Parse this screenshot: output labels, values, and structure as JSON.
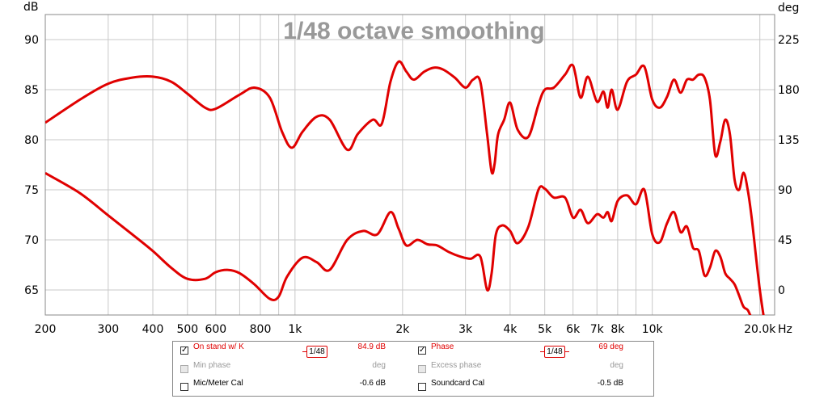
{
  "chart_data": {
    "type": "line",
    "title": "1/48 octave smoothing",
    "left_unit": "dB",
    "right_unit": "deg",
    "x_unit": "Hz",
    "x_scale": "log",
    "xlim": [
      200,
      22000
    ],
    "ylim_left": [
      62.5,
      92.5
    ],
    "ylim_right": [
      -22.5,
      247.5
    ],
    "x_ticks": [
      {
        "value": 200,
        "label": "200"
      },
      {
        "value": 300,
        "label": "300"
      },
      {
        "value": 400,
        "label": "400"
      },
      {
        "value": 500,
        "label": "500"
      },
      {
        "value": 600,
        "label": "600"
      },
      {
        "value": 800,
        "label": "800"
      },
      {
        "value": 1000,
        "label": "1k"
      },
      {
        "value": 2000,
        "label": "2k"
      },
      {
        "value": 3000,
        "label": "3k"
      },
      {
        "value": 4000,
        "label": "4k"
      },
      {
        "value": 5000,
        "label": "5k"
      },
      {
        "value": 6000,
        "label": "6k"
      },
      {
        "value": 7000,
        "label": "7k"
      },
      {
        "value": 8000,
        "label": "8k"
      },
      {
        "value": 10000,
        "label": "10k"
      },
      {
        "value": 20000,
        "label": "20.0k"
      }
    ],
    "y_left_ticks": [
      {
        "value": 65,
        "label": "65"
      },
      {
        "value": 70,
        "label": "70"
      },
      {
        "value": 75,
        "label": "75"
      },
      {
        "value": 80,
        "label": "80"
      },
      {
        "value": 85,
        "label": "85"
      },
      {
        "value": 90,
        "label": "90"
      }
    ],
    "y_right_ticks": [
      {
        "value": 0,
        "label": "0"
      },
      {
        "value": 45,
        "label": "45"
      },
      {
        "value": 90,
        "label": "90"
      },
      {
        "value": 135,
        "label": "135"
      },
      {
        "value": 180,
        "label": "180"
      },
      {
        "value": 225,
        "label": "225"
      }
    ],
    "grid": true,
    "series": [
      {
        "name": "On stand w/ K",
        "axis": "left",
        "color": "#e00000",
        "x": [
          200,
          250,
          300,
          350,
          400,
          450,
          500,
          560,
          600,
          700,
          770,
          850,
          920,
          980,
          1050,
          1150,
          1250,
          1400,
          1500,
          1650,
          1750,
          1850,
          1950,
          2050,
          2150,
          2300,
          2450,
          2600,
          2800,
          3000,
          3150,
          3300,
          3450,
          3550,
          3620,
          3700,
          3850,
          4000,
          4200,
          4500,
          4800,
          5000,
          5300,
          5700,
          6000,
          6300,
          6600,
          7000,
          7300,
          7500,
          7700,
          8000,
          8500,
          9000,
          9500,
          10000,
          10500,
          11000,
          11500,
          12000,
          12500,
          13000,
          13500,
          14000,
          14500,
          15000,
          15500,
          16000,
          16500,
          17000,
          17500,
          18000,
          18500,
          19000,
          20000,
          21000
        ],
        "y": [
          81.7,
          84.0,
          85.6,
          86.2,
          86.3,
          85.8,
          84.6,
          83.2,
          83.1,
          84.5,
          85.2,
          84.2,
          80.8,
          79.2,
          80.8,
          82.3,
          82.0,
          79.0,
          80.6,
          82.0,
          81.6,
          85.8,
          87.8,
          86.8,
          86.0,
          86.8,
          87.2,
          87.0,
          86.2,
          85.2,
          86.0,
          85.8,
          80.5,
          76.8,
          77.6,
          80.5,
          82.0,
          83.7,
          81.0,
          80.3,
          83.5,
          85.0,
          85.2,
          86.5,
          87.4,
          84.2,
          86.3,
          83.8,
          84.8,
          83.2,
          85.0,
          83.0,
          85.8,
          86.5,
          87.3,
          84.0,
          83.2,
          84.3,
          86.0,
          84.7,
          86.0,
          86.0,
          86.5,
          86.2,
          84.0,
          78.5,
          79.8,
          82.0,
          80.5,
          76.0,
          75.0,
          76.7,
          75.0,
          72.0,
          65.0,
          60.0
        ]
      },
      {
        "name": "Phase",
        "axis": "right",
        "color": "#e00000",
        "x": [
          200,
          250,
          300,
          350,
          400,
          450,
          500,
          560,
          600,
          650,
          700,
          770,
          850,
          900,
          950,
          1050,
          1150,
          1250,
          1400,
          1550,
          1700,
          1850,
          1950,
          2050,
          2200,
          2350,
          2500,
          2700,
          2900,
          3100,
          3300,
          3450,
          3550,
          3650,
          3800,
          4000,
          4200,
          4500,
          4800,
          5000,
          5300,
          5700,
          6000,
          6300,
          6600,
          7000,
          7300,
          7500,
          7700,
          8000,
          8500,
          9000,
          9500,
          10000,
          10500,
          11000,
          11500,
          12000,
          12500,
          13000,
          13500,
          14000,
          14500,
          15000,
          15500,
          16000,
          16500,
          17000,
          17500,
          18000,
          18500,
          19000,
          20000
        ],
        "y": [
          105,
          87,
          67,
          50,
          35,
          20,
          10,
          10,
          16,
          18,
          15,
          5,
          -8,
          -6,
          12,
          29,
          25,
          18,
          45,
          53,
          50,
          70,
          55,
          40,
          45,
          41,
          40,
          34,
          30,
          28,
          30,
          0,
          15,
          50,
          58,
          53,
          42,
          57,
          90,
          91,
          83,
          83,
          65,
          72,
          60,
          68,
          65,
          70,
          62,
          80,
          85,
          77,
          90,
          50,
          43,
          60,
          70,
          52,
          57,
          38,
          35,
          13,
          20,
          35,
          30,
          15,
          10,
          5,
          -5,
          -15,
          -18,
          -25,
          -30
        ]
      }
    ]
  },
  "legend": {
    "rows": [
      {
        "left": {
          "label": "On stand w/ K",
          "checked": true,
          "enabled": true,
          "smoothing": "1/48",
          "value": "84.9 dB"
        },
        "right": {
          "label": "Phase",
          "checked": true,
          "enabled": true,
          "smoothing": "1/48",
          "value": "69 deg"
        }
      },
      {
        "left": {
          "label": "Min phase",
          "checked": false,
          "enabled": false,
          "value": "deg"
        },
        "right": {
          "label": "Excess phase",
          "checked": false,
          "enabled": false,
          "value": "deg"
        }
      },
      {
        "left": {
          "label": "Mic/Meter Cal",
          "checked": false,
          "enabled": true,
          "value": "-0.6 dB"
        },
        "right": {
          "label": "Soundcard Cal",
          "checked": false,
          "enabled": true,
          "value": "-0.5 dB"
        }
      }
    ],
    "checkmark": "✓"
  }
}
